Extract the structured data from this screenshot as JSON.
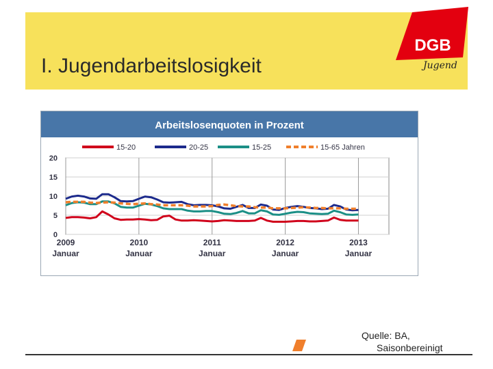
{
  "slide": {
    "title": "I. Jugendarbeitslosigkeit",
    "logo_text": "DGB",
    "logo_sub": "Jugend",
    "source_line1": "Quelle: BA,",
    "source_line2": "Saisonbereinigt"
  },
  "colors": {
    "band": "#f7e15b",
    "logo": "#e3000f",
    "chart_header": "#4876a8"
  },
  "chart_data": {
    "type": "line",
    "title": "Arbeitslosenquoten in Prozent",
    "ylim": [
      0,
      20
    ],
    "yticks": [
      0,
      5,
      10,
      15,
      20
    ],
    "xlim": [
      0,
      53
    ],
    "xticks": [
      {
        "x": 0,
        "label": [
          "2009",
          "Januar"
        ]
      },
      {
        "x": 12,
        "label": [
          "2010",
          "Januar"
        ]
      },
      {
        "x": 24,
        "label": [
          "2011",
          "Januar"
        ]
      },
      {
        "x": 36,
        "label": [
          "2012",
          "Januar"
        ]
      },
      {
        "x": 48,
        "label": [
          "2013",
          "Januar"
        ]
      }
    ],
    "grid": true,
    "legend_position": "top",
    "series": [
      {
        "name": "15-20",
        "color": "#d0021b",
        "dash": false,
        "values": [
          4.3,
          4.5,
          4.5,
          4.4,
          4.2,
          4.5,
          6.0,
          5.2,
          4.2,
          3.8,
          3.9,
          3.9,
          4.0,
          3.9,
          3.7,
          3.8,
          4.7,
          4.9,
          3.9,
          3.6,
          3.6,
          3.7,
          3.6,
          3.5,
          3.4,
          3.5,
          3.7,
          3.6,
          3.5,
          3.5,
          3.5,
          3.6,
          4.3,
          3.6,
          3.3,
          3.3,
          3.3,
          3.4,
          3.5,
          3.5,
          3.4,
          3.4,
          3.5,
          3.6,
          4.4,
          3.8,
          3.6,
          3.6,
          3.6
        ]
      },
      {
        "name": "20-25",
        "color": "#1c2a8c",
        "dash": false,
        "values": [
          9.3,
          9.9,
          10.1,
          9.9,
          9.4,
          9.3,
          10.5,
          10.5,
          9.7,
          8.7,
          8.6,
          8.7,
          9.3,
          9.9,
          9.7,
          9.1,
          8.4,
          8.3,
          8.4,
          8.5,
          7.9,
          7.6,
          7.7,
          7.7,
          7.6,
          7.3,
          6.8,
          6.7,
          7.2,
          7.7,
          6.9,
          6.9,
          7.8,
          7.5,
          6.5,
          6.4,
          6.9,
          7.2,
          7.4,
          7.2,
          6.9,
          6.8,
          6.6,
          6.7,
          7.7,
          7.3,
          6.5,
          6.3,
          6.4
        ]
      },
      {
        "name": "15-25",
        "color": "#1b8f86",
        "dash": false,
        "values": [
          7.6,
          8.2,
          8.4,
          8.3,
          7.9,
          7.9,
          8.6,
          8.6,
          8.1,
          7.2,
          7.0,
          7.0,
          7.5,
          8.0,
          7.8,
          7.4,
          6.8,
          6.6,
          6.6,
          6.6,
          6.2,
          6.0,
          6.0,
          6.1,
          6.1,
          5.8,
          5.4,
          5.3,
          5.6,
          6.1,
          5.5,
          5.5,
          6.3,
          6.0,
          5.2,
          5.1,
          5.4,
          5.7,
          5.9,
          5.8,
          5.5,
          5.4,
          5.3,
          5.4,
          6.2,
          5.8,
          5.2,
          5.1,
          5.2
        ]
      },
      {
        "name": "15-65 Jahren",
        "color": "#f07f2c",
        "dash": true,
        "values": [
          8.4,
          8.5,
          8.5,
          8.5,
          8.3,
          8.2,
          8.3,
          8.4,
          8.3,
          8.1,
          8.0,
          7.9,
          8.0,
          8.1,
          7.9,
          7.8,
          7.6,
          7.6,
          7.6,
          7.6,
          7.5,
          7.3,
          7.3,
          7.3,
          7.4,
          7.7,
          7.8,
          7.6,
          7.4,
          7.3,
          7.3,
          7.1,
          7.0,
          7.0,
          6.8,
          6.8,
          6.8,
          6.9,
          7.0,
          7.1,
          7.0,
          6.9,
          6.9,
          6.8,
          6.8,
          6.8,
          6.7,
          6.7,
          6.7
        ]
      }
    ]
  }
}
